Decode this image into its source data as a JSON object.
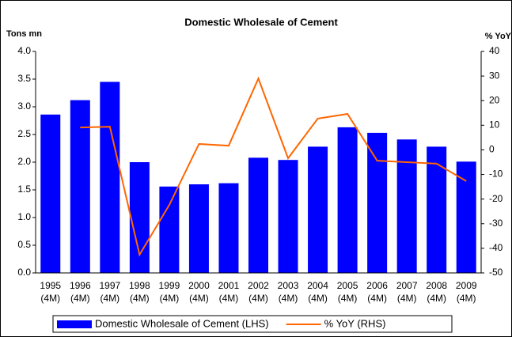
{
  "chart_data": {
    "type": "bar_line",
    "title": "Domestic Wholesale of Cement",
    "y_label": "Tons mn",
    "y2_label": "% YoY",
    "categories": [
      "1995 (4M)",
      "1996 (4M)",
      "1997 (4M)",
      "1998 (4M)",
      "1999 (4M)",
      "2000 (4M)",
      "2001 (4M)",
      "2002 (4M)",
      "2003 (4M)",
      "2004 (4M)",
      "2005 (4M)",
      "2006 (4M)",
      "2007 (4M)",
      "2008 (4M)",
      "2009 (4M)"
    ],
    "series": [
      {
        "name": "Domestic Wholesale of Cement (LHS)",
        "type": "bar",
        "color": "#0000ff",
        "values": [
          2.86,
          3.12,
          3.45,
          2.0,
          1.56,
          1.6,
          1.62,
          2.08,
          2.04,
          2.28,
          2.63,
          2.53,
          2.41,
          2.28,
          2.01
        ]
      },
      {
        "name": "% YoY (RHS)",
        "type": "line",
        "axis": "y2",
        "color": "#ff6600",
        "values": [
          null,
          9.1,
          9.4,
          -42.6,
          -22.4,
          2.4,
          1.7,
          29,
          -3.4,
          12.7,
          14.6,
          -4.4,
          -5,
          -5.6,
          -12.7
        ]
      }
    ],
    "ylim": [
      0,
      4
    ],
    "yticks": [
      {
        "value": 0,
        "label": "0.0"
      },
      {
        "value": 0.5,
        "label": "0.5"
      },
      {
        "value": 1,
        "label": "1.0"
      },
      {
        "value": 1.5,
        "label": "1.5"
      },
      {
        "value": 2,
        "label": "2.0"
      },
      {
        "value": 2.5,
        "label": "2.5"
      },
      {
        "value": 3,
        "label": "3.0"
      },
      {
        "value": 3.5,
        "label": "3.5"
      },
      {
        "value": 4,
        "label": "4.0"
      }
    ],
    "y2lim": [
      -50,
      40
    ],
    "y2ticks": [
      -50,
      -40,
      -30,
      -20,
      -10,
      0,
      10,
      20,
      30,
      40
    ],
    "legend": "bottom"
  }
}
